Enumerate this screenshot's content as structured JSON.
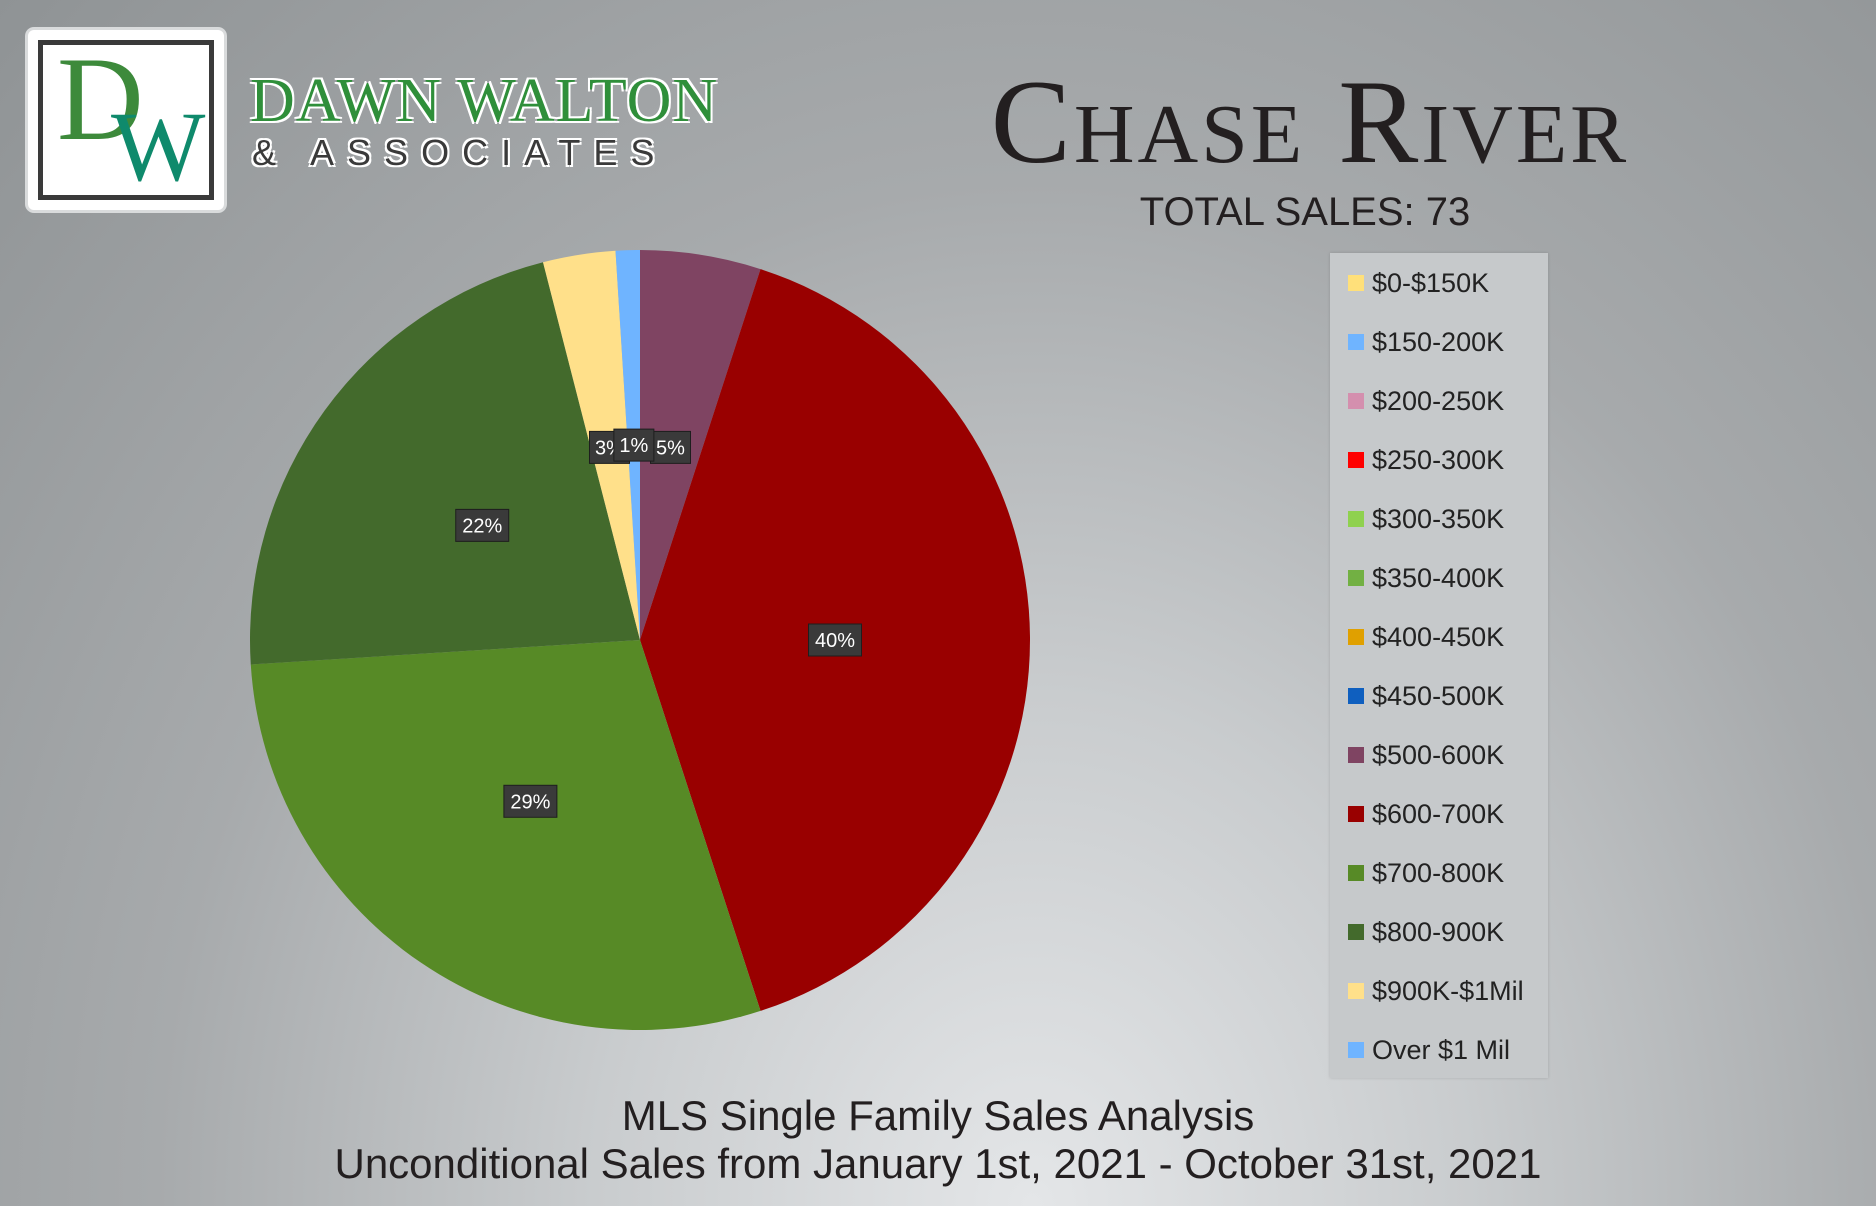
{
  "brand": {
    "logo_letter_d": "D",
    "logo_letter_w": "W",
    "name": "DAWN WALTON",
    "sub": "& ASSOCIATES"
  },
  "header": {
    "title": "Chase River",
    "total_sales": "TOTAL SALES: 73"
  },
  "footer": {
    "line1": "MLS Single Family Sales Analysis",
    "line2": "Unconditional Sales from January 1st, 2021 - October 31st, 2021"
  },
  "chart_data": {
    "type": "pie",
    "title": "Chase River",
    "legend_position": "right",
    "categories": [
      "$0-$150K",
      "$150-200K",
      "$200-250K",
      "$250-300K",
      "$300-350K",
      "$350-400K",
      "$400-450K",
      "$450-500K",
      "$500-600K",
      "$600-700K",
      "$700-800K",
      "$800-900K",
      "$900K-$1Mil",
      "Over $1 Mil"
    ],
    "colors": [
      "#ffe07a",
      "#6fb4ff",
      "#d48fae",
      "#ff0000",
      "#8fd14f",
      "#72b043",
      "#e0a000",
      "#0f5fbf",
      "#7f4462",
      "#990000",
      "#578a26",
      "#436a2c",
      "#ffe08a",
      "#6fb4ff"
    ],
    "values": [
      0,
      0,
      0,
      0,
      0,
      0,
      0,
      0,
      5,
      40,
      29,
      22,
      3,
      1
    ],
    "slice_labels": [
      "",
      "",
      "",
      "",
      "",
      "",
      "",
      "",
      "5%",
      "40%",
      "29%",
      "22%",
      "3%",
      "1%"
    ]
  }
}
